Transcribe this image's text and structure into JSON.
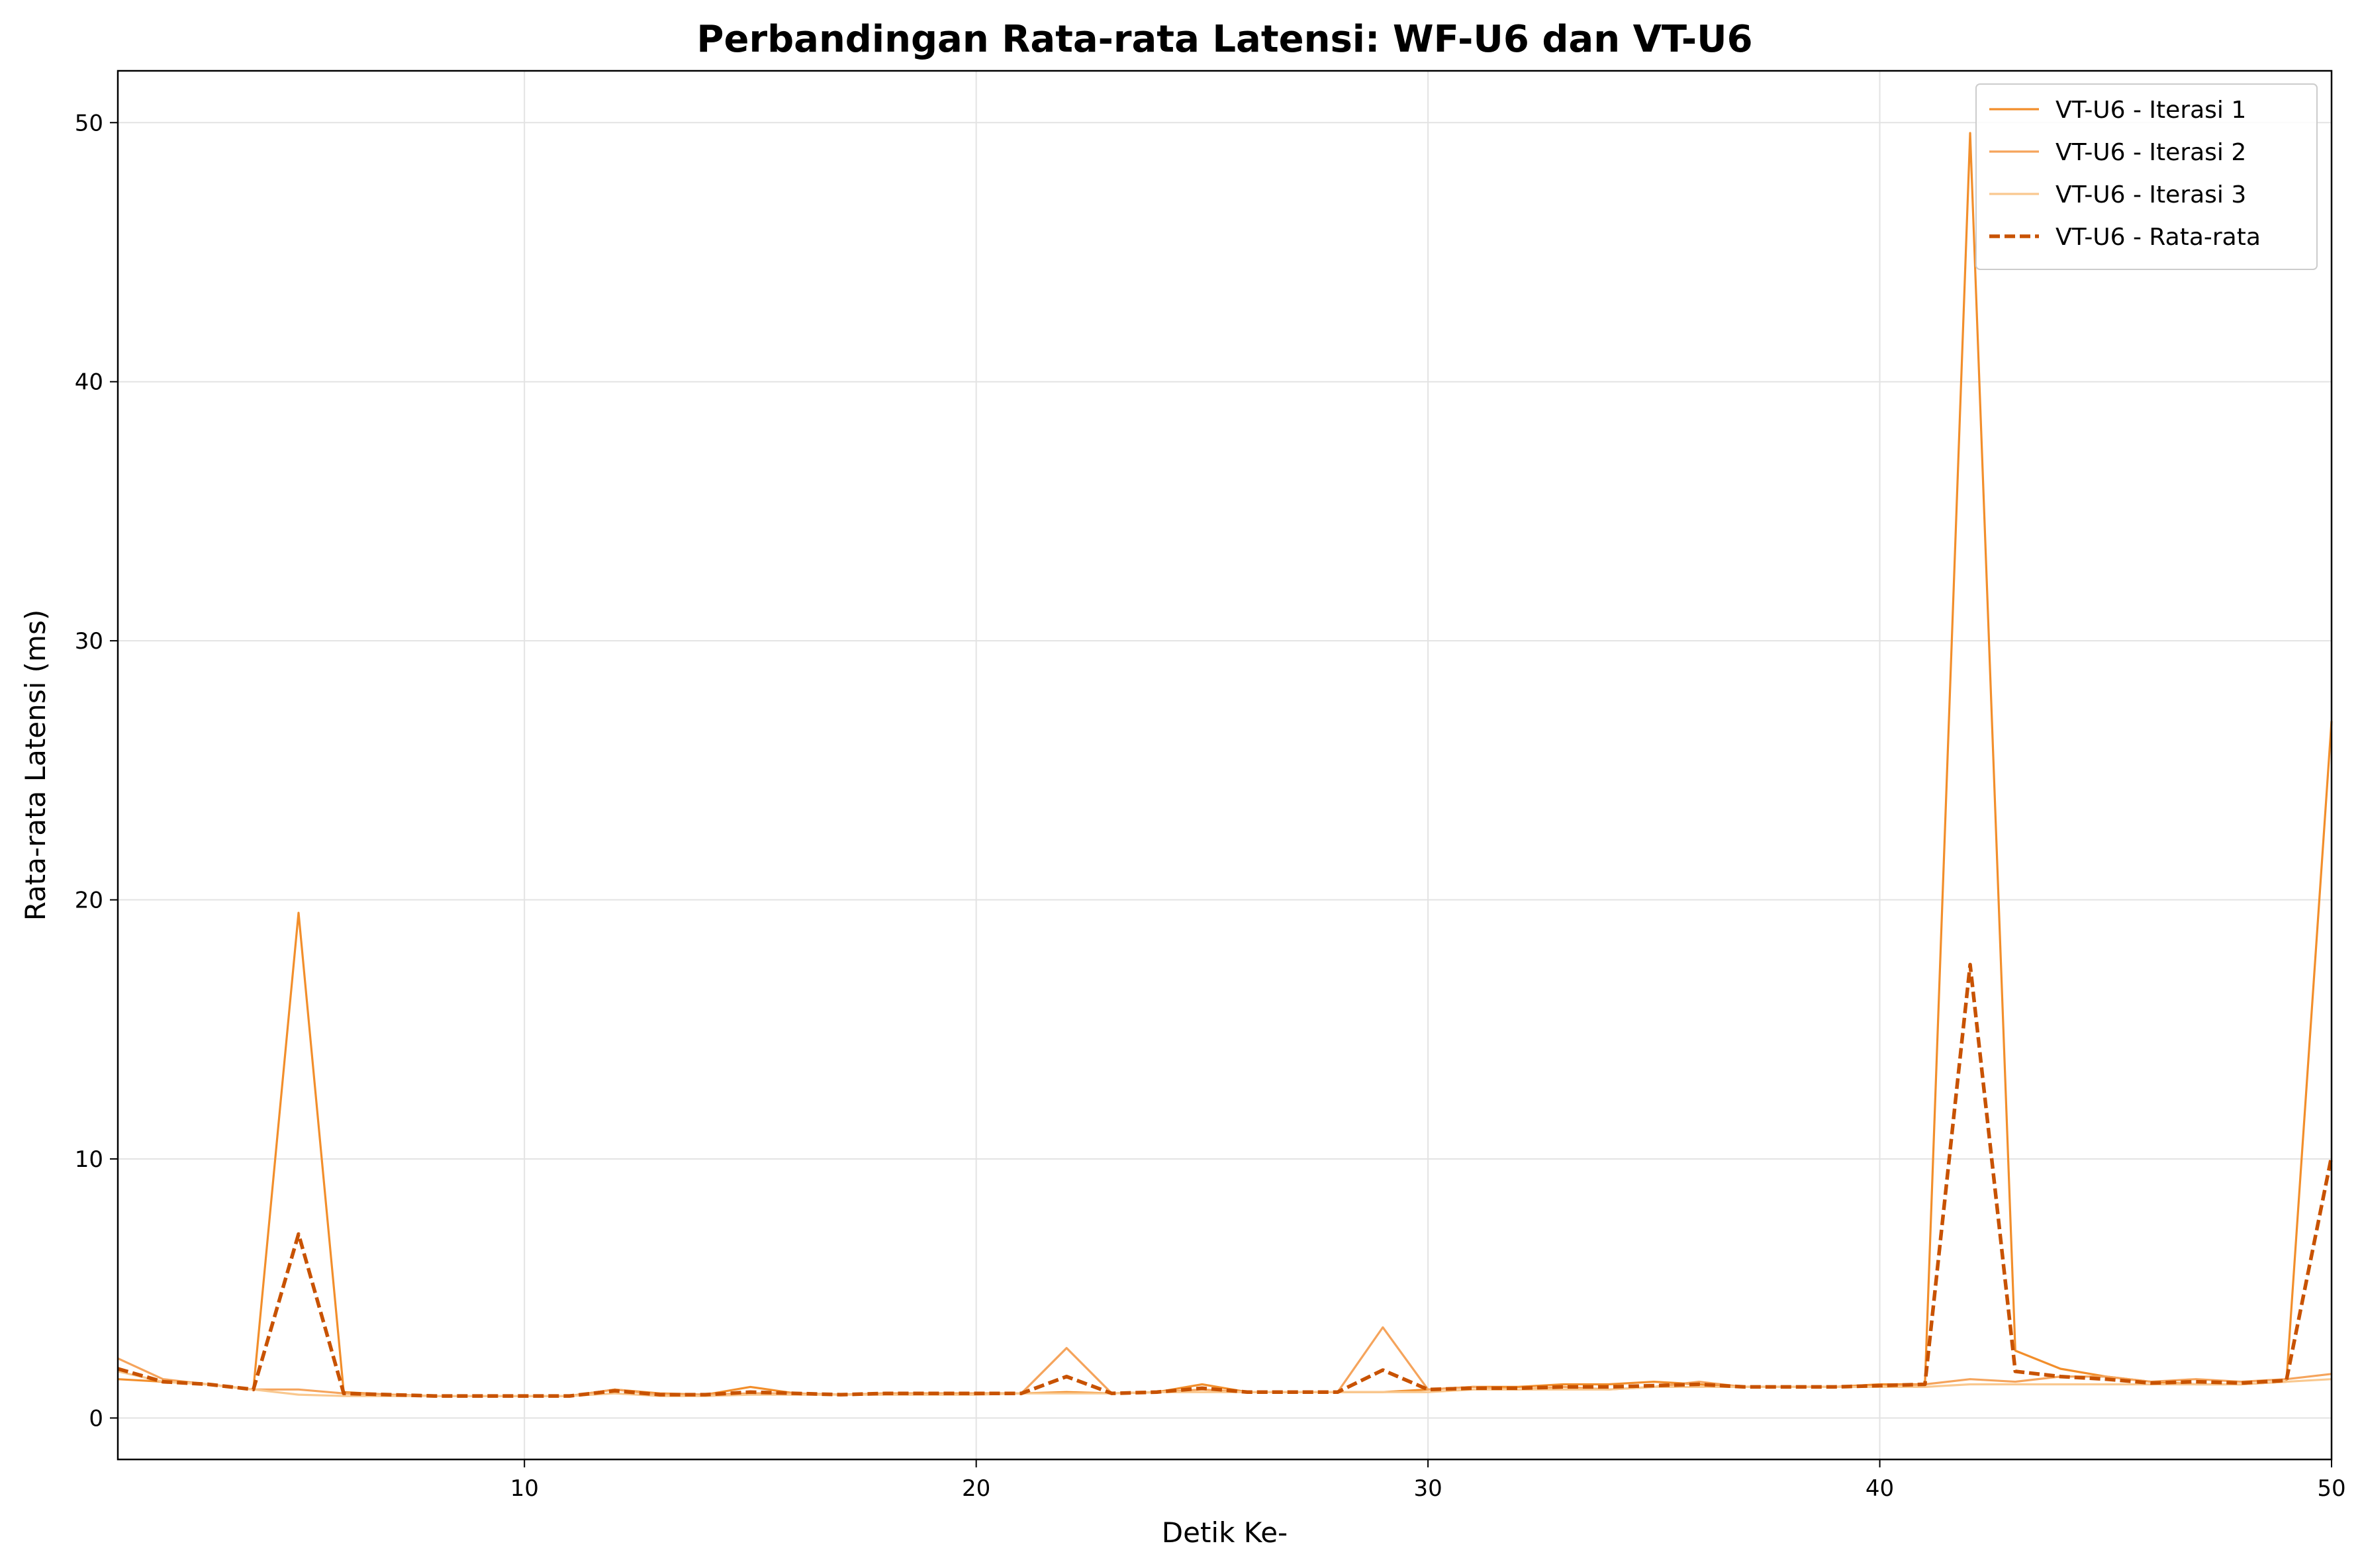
{
  "chart_data": {
    "type": "line",
    "title": "Perbandingan Rata-rata Latensi: WF-U6 dan VT-U6",
    "xlabel": "Detik Ke-",
    "ylabel": "Rata-rata Latensi (ms)",
    "xlim": [
      1,
      50
    ],
    "ylim": [
      -1.6,
      52
    ],
    "xticks": [
      10,
      20,
      30,
      40,
      50
    ],
    "yticks": [
      0,
      10,
      20,
      30,
      40,
      50
    ],
    "grid": true,
    "legend_position": "top-right",
    "x": [
      1,
      2,
      3,
      4,
      5,
      6,
      7,
      8,
      9,
      10,
      11,
      12,
      13,
      14,
      15,
      16,
      17,
      18,
      19,
      20,
      21,
      22,
      23,
      24,
      25,
      26,
      27,
      28,
      29,
      30,
      31,
      32,
      33,
      34,
      35,
      36,
      37,
      38,
      39,
      40,
      41,
      42,
      43,
      44,
      45,
      46,
      47,
      48,
      49,
      50
    ],
    "series": [
      {
        "name": "VT-U6 - Iterasi 1",
        "color": "#f28e2b",
        "dash": "solid",
        "values": [
          1.5,
          1.4,
          1.3,
          1.1,
          19.5,
          1.0,
          0.9,
          0.85,
          0.85,
          0.85,
          0.85,
          1.1,
          0.95,
          0.9,
          1.2,
          0.95,
          0.9,
          0.95,
          0.95,
          0.95,
          0.95,
          1.0,
          0.95,
          1.0,
          1.3,
          1.0,
          1.0,
          1.0,
          1.0,
          1.1,
          1.2,
          1.2,
          1.3,
          1.3,
          1.4,
          1.3,
          1.2,
          1.2,
          1.2,
          1.3,
          1.3,
          49.6,
          2.6,
          1.9,
          1.6,
          1.4,
          1.3,
          1.3,
          1.4,
          26.9
        ]
      },
      {
        "name": "VT-U6 - Iterasi 2",
        "color": "#f5a45c",
        "dash": "solid",
        "values": [
          2.3,
          1.5,
          1.3,
          1.1,
          1.1,
          0.95,
          0.9,
          0.85,
          0.85,
          0.85,
          0.85,
          1.1,
          0.9,
          0.9,
          0.95,
          0.95,
          0.9,
          0.95,
          0.95,
          0.95,
          0.95,
          2.7,
          0.95,
          1.0,
          1.1,
          1.0,
          1.0,
          1.0,
          3.5,
          1.1,
          1.2,
          1.1,
          1.2,
          1.1,
          1.2,
          1.4,
          1.2,
          1.2,
          1.2,
          1.2,
          1.3,
          1.5,
          1.4,
          1.6,
          1.6,
          1.4,
          1.5,
          1.4,
          1.5,
          1.7
        ]
      },
      {
        "name": "VT-U6 - Iterasi 3",
        "color": "#f9c88f",
        "dash": "solid",
        "values": [
          1.8,
          1.4,
          1.3,
          1.1,
          0.9,
          0.85,
          0.85,
          0.85,
          0.85,
          0.85,
          0.85,
          0.95,
          0.85,
          0.85,
          0.9,
          0.9,
          0.9,
          0.9,
          0.9,
          0.9,
          0.95,
          0.95,
          0.95,
          1.0,
          1.0,
          1.0,
          1.0,
          1.0,
          1.0,
          1.0,
          1.1,
          1.1,
          1.1,
          1.1,
          1.2,
          1.2,
          1.2,
          1.2,
          1.2,
          1.2,
          1.2,
          1.3,
          1.3,
          1.3,
          1.3,
          1.3,
          1.3,
          1.3,
          1.4,
          1.5
        ]
      },
      {
        "name": "VT-U6 - Rata-rata",
        "color": "#c85200",
        "dash": "dashed",
        "values": [
          1.9,
          1.4,
          1.3,
          1.1,
          7.1,
          0.95,
          0.9,
          0.85,
          0.85,
          0.85,
          0.85,
          1.05,
          0.9,
          0.9,
          1.0,
          0.95,
          0.9,
          0.95,
          0.95,
          0.95,
          0.95,
          1.6,
          0.95,
          1.0,
          1.15,
          1.0,
          1.0,
          1.0,
          1.85,
          1.1,
          1.15,
          1.15,
          1.2,
          1.2,
          1.25,
          1.3,
          1.2,
          1.2,
          1.2,
          1.25,
          1.3,
          17.5,
          1.8,
          1.6,
          1.5,
          1.35,
          1.4,
          1.35,
          1.45,
          10.1
        ]
      }
    ]
  }
}
